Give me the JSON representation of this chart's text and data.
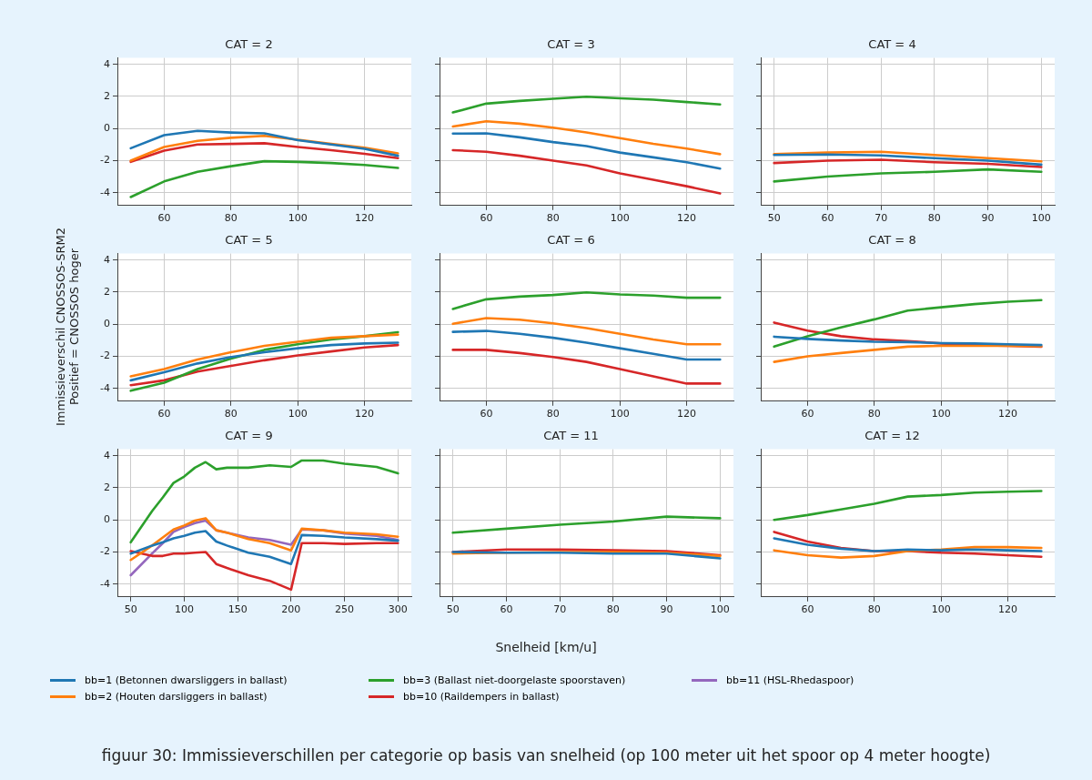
{
  "chart_data": [
    {
      "type": "line",
      "title": "CAT = 2",
      "x": [
        50,
        60,
        70,
        80,
        90,
        100,
        110,
        120,
        130
      ],
      "xlim": [
        46,
        134
      ],
      "xticks": [
        60,
        80,
        100,
        120
      ],
      "ylim": [
        -4.8,
        4.4
      ],
      "yticks": [
        -4,
        -2,
        0,
        2,
        4
      ],
      "grid": true,
      "marker": "none",
      "line_style": "solid",
      "series": [
        {
          "color": "#1f77b4",
          "values": [
            -1.23,
            -0.42,
            -0.15,
            -0.25,
            -0.3,
            -0.73,
            -1.0,
            -1.27,
            -1.7
          ]
        },
        {
          "color": "#ff7f0e",
          "values": [
            -2.0,
            -1.15,
            -0.77,
            -0.58,
            -0.46,
            -0.7,
            -0.96,
            -1.2,
            -1.55
          ]
        },
        {
          "color": "#2ca02c",
          "values": [
            -4.27,
            -3.3,
            -2.7,
            -2.35,
            -2.04,
            -2.08,
            -2.15,
            -2.27,
            -2.46
          ]
        },
        {
          "color": "#d62728",
          "values": [
            -2.08,
            -1.38,
            -1.0,
            -0.96,
            -0.92,
            -1.15,
            -1.35,
            -1.58,
            -1.85
          ]
        }
      ]
    },
    {
      "type": "line",
      "title": "CAT = 3",
      "x": [
        50,
        60,
        70,
        80,
        90,
        100,
        110,
        120,
        130
      ],
      "xlim": [
        46,
        134
      ],
      "xticks": [
        60,
        80,
        100,
        120
      ],
      "ylim": [
        -4.8,
        4.4
      ],
      "yticks": [
        -4,
        -2,
        0,
        2,
        4
      ],
      "tick_labels": "x",
      "grid": true,
      "marker": "none",
      "line_style": "solid",
      "series": [
        {
          "color": "#1f77b4",
          "values": [
            -0.32,
            -0.3,
            -0.55,
            -0.85,
            -1.1,
            -1.5,
            -1.8,
            -2.1,
            -2.5
          ]
        },
        {
          "color": "#ff7f0e",
          "values": [
            0.12,
            0.45,
            0.3,
            0.05,
            -0.25,
            -0.6,
            -0.95,
            -1.25,
            -1.6
          ]
        },
        {
          "color": "#2ca02c",
          "values": [
            1.0,
            1.55,
            1.72,
            1.85,
            1.98,
            1.88,
            1.8,
            1.65,
            1.5
          ]
        },
        {
          "color": "#d62728",
          "values": [
            -1.35,
            -1.45,
            -1.7,
            -2.0,
            -2.3,
            -2.8,
            -3.2,
            -3.6,
            -4.05
          ]
        }
      ]
    },
    {
      "type": "line",
      "title": "CAT = 4",
      "x": [
        50,
        60,
        70,
        80,
        90,
        100
      ],
      "xlim": [
        47.5,
        102.5
      ],
      "xticks": [
        50,
        60,
        70,
        80,
        90,
        100
      ],
      "ylim": [
        -4.8,
        4.4
      ],
      "yticks": [
        -4,
        -2,
        0,
        2,
        4
      ],
      "tick_labels": "x",
      "grid": true,
      "marker": "none",
      "line_style": "solid",
      "series": [
        {
          "color": "#1f77b4",
          "values": [
            -1.65,
            -1.62,
            -1.68,
            -1.85,
            -2.0,
            -2.25
          ]
        },
        {
          "color": "#ff7f0e",
          "values": [
            -1.6,
            -1.5,
            -1.45,
            -1.65,
            -1.85,
            -2.05
          ]
        },
        {
          "color": "#2ca02c",
          "values": [
            -3.3,
            -3.0,
            -2.8,
            -2.7,
            -2.55,
            -2.7
          ]
        },
        {
          "color": "#d62728",
          "values": [
            -2.15,
            -2.0,
            -1.95,
            -2.1,
            -2.2,
            -2.4
          ]
        }
      ]
    },
    {
      "type": "line",
      "title": "CAT = 5",
      "ylabel": "Immissieverschil CNOSSOS-SRM2\nPositief = CNOSSOS hoger",
      "x": [
        50,
        60,
        70,
        80,
        90,
        100,
        110,
        120,
        130
      ],
      "xlim": [
        46,
        134
      ],
      "xticks": [
        60,
        80,
        100,
        120
      ],
      "ylim": [
        -4.8,
        4.4
      ],
      "yticks": [
        -4,
        -2,
        0,
        2,
        4
      ],
      "grid": true,
      "marker": "none",
      "line_style": "solid",
      "series": [
        {
          "color": "#1f77b4",
          "values": [
            -3.5,
            -3.0,
            -2.45,
            -2.05,
            -1.75,
            -1.5,
            -1.3,
            -1.2,
            -1.15
          ]
        },
        {
          "color": "#ff7f0e",
          "values": [
            -3.25,
            -2.8,
            -2.2,
            -1.75,
            -1.35,
            -1.1,
            -0.85,
            -0.75,
            -0.65
          ]
        },
        {
          "color": "#2ca02c",
          "values": [
            -4.15,
            -3.65,
            -2.8,
            -2.15,
            -1.6,
            -1.25,
            -0.95,
            -0.75,
            -0.5
          ]
        },
        {
          "color": "#d62728",
          "values": [
            -3.8,
            -3.5,
            -2.95,
            -2.6,
            -2.25,
            -1.95,
            -1.7,
            -1.45,
            -1.3
          ]
        }
      ]
    },
    {
      "type": "line",
      "title": "CAT = 6",
      "x": [
        50,
        60,
        70,
        80,
        90,
        100,
        110,
        120,
        130
      ],
      "xlim": [
        46,
        134
      ],
      "xticks": [
        60,
        80,
        100,
        120
      ],
      "ylim": [
        -4.8,
        4.4
      ],
      "yticks": [
        -4,
        -2,
        0,
        2,
        4
      ],
      "tick_labels": "x",
      "grid": true,
      "marker": "none",
      "line_style": "solid",
      "series": [
        {
          "color": "#1f77b4",
          "values": [
            -0.48,
            -0.42,
            -0.6,
            -0.85,
            -1.15,
            -1.5,
            -1.85,
            -2.2,
            -2.2
          ]
        },
        {
          "color": "#ff7f0e",
          "values": [
            0.02,
            0.38,
            0.28,
            0.05,
            -0.25,
            -0.6,
            -0.95,
            -1.25,
            -1.25
          ]
        },
        {
          "color": "#2ca02c",
          "values": [
            0.95,
            1.55,
            1.72,
            1.82,
            1.98,
            1.85,
            1.78,
            1.65,
            1.65
          ]
        },
        {
          "color": "#d62728",
          "values": [
            -1.6,
            -1.6,
            -1.8,
            -2.05,
            -2.35,
            -2.8,
            -3.25,
            -3.7,
            -3.7
          ]
        }
      ]
    },
    {
      "type": "line",
      "title": "CAT = 8",
      "x": [
        50,
        60,
        70,
        80,
        90,
        100,
        110,
        120,
        130
      ],
      "xlim": [
        46,
        134
      ],
      "xticks": [
        60,
        80,
        100,
        120
      ],
      "ylim": [
        -4.8,
        4.4
      ],
      "yticks": [
        -4,
        -2,
        0,
        2,
        4
      ],
      "tick_labels": "x",
      "grid": true,
      "marker": "none",
      "line_style": "solid",
      "series": [
        {
          "color": "#1f77b4",
          "values": [
            -0.78,
            -0.92,
            -1.02,
            -1.1,
            -1.12,
            -1.18,
            -1.2,
            -1.25,
            -1.3
          ]
        },
        {
          "color": "#ff7f0e",
          "values": [
            -2.35,
            -2.0,
            -1.8,
            -1.6,
            -1.4,
            -1.35,
            -1.35,
            -1.35,
            -1.38
          ]
        },
        {
          "color": "#2ca02c",
          "values": [
            -1.4,
            -0.75,
            -0.2,
            0.3,
            0.85,
            1.05,
            1.25,
            1.4,
            1.5
          ]
        },
        {
          "color": "#d62728",
          "values": [
            0.1,
            -0.4,
            -0.75,
            -0.95,
            -1.05,
            -1.2,
            -1.3,
            -1.35,
            -1.4
          ]
        }
      ]
    },
    {
      "type": "line",
      "title": "CAT = 9",
      "legend": "bottom",
      "x": [
        50,
        70,
        80,
        90,
        100,
        110,
        120,
        130,
        140,
        160,
        180,
        200,
        210,
        230,
        250,
        280,
        300
      ],
      "xlim": [
        37.5,
        312.5
      ],
      "xticks": [
        50,
        100,
        150,
        200,
        250,
        300
      ],
      "ylim": [
        -4.8,
        4.4
      ],
      "yticks": [
        -4,
        -2,
        0,
        2,
        4
      ],
      "grid": true,
      "marker": "none",
      "line_style": "solid",
      "series": [
        {
          "name": "bb=1 (Betonnen dwarsliggers in ballast)",
          "color": "#1f77b4",
          "values": [
            -2.1,
            -1.6,
            -1.4,
            -1.15,
            -1.0,
            -0.8,
            -0.7,
            -1.35,
            -1.6,
            -2.05,
            -2.3,
            -2.75,
            -0.95,
            -1.0,
            -1.1,
            -1.2,
            -1.3
          ]
        },
        {
          "name": "bb=2 (Houten darsliggers in ballast)",
          "color": "#ff7f0e",
          "values": [
            -2.5,
            -1.6,
            -1.1,
            -0.6,
            -0.35,
            -0.05,
            0.1,
            -0.65,
            -0.8,
            -1.2,
            -1.45,
            -1.9,
            -0.55,
            -0.65,
            -0.8,
            -0.9,
            -1.05
          ]
        },
        {
          "name": "bb=3 (Ballast niet-doorgelaste spoorstaven)",
          "color": "#2ca02c",
          "values": [
            -1.4,
            0.55,
            1.4,
            2.3,
            2.7,
            3.25,
            3.6,
            3.15,
            3.25,
            3.25,
            3.4,
            3.3,
            3.7,
            3.7,
            3.5,
            3.3,
            2.9
          ]
        },
        {
          "name": "bb=10 (Raildempers in ballast)",
          "color": "#d62728",
          "values": [
            -1.95,
            -2.25,
            -2.25,
            -2.1,
            -2.1,
            -2.05,
            -2.0,
            -2.75,
            -3.0,
            -3.45,
            -3.8,
            -4.35,
            -1.45,
            -1.45,
            -1.5,
            -1.45,
            -1.45
          ]
        },
        {
          "name": "bb=11 (HSL-Rhedaspoor)",
          "color": "#9467bd",
          "values": [
            -3.45,
            -2.1,
            -1.45,
            -0.75,
            -0.45,
            -0.2,
            -0.05,
            -0.65,
            -0.8,
            -1.1,
            -1.25,
            -1.55,
            -0.6,
            -0.65,
            -0.85,
            -1.0,
            -1.25
          ]
        }
      ]
    },
    {
      "type": "line",
      "title": "CAT = 11",
      "xlabel": "Snelheid [km/u]",
      "annotations": [
        "figuur 30: Immissieverschillen per categorie op basis van snelheid (op 100 meter uit het spoor op 4 meter hoogte)"
      ],
      "x": [
        50,
        60,
        70,
        80,
        90,
        100
      ],
      "xlim": [
        47.5,
        102.5
      ],
      "xticks": [
        50,
        60,
        70,
        80,
        90,
        100
      ],
      "ylim": [
        -4.8,
        4.4
      ],
      "yticks": [
        -4,
        -2,
        0,
        2,
        4
      ],
      "tick_labels": "x",
      "grid": true,
      "marker": "none",
      "line_style": "solid",
      "series": [
        {
          "color": "#1f77b4",
          "values": [
            -2.0,
            -2.05,
            -2.05,
            -2.1,
            -2.1,
            -2.4
          ]
        },
        {
          "color": "#ff7f0e",
          "values": [
            -2.1,
            -2.05,
            -2.0,
            -2.0,
            -2.05,
            -2.25
          ]
        },
        {
          "color": "#2ca02c",
          "values": [
            -0.8,
            -0.55,
            -0.3,
            -0.1,
            0.2,
            0.1
          ]
        },
        {
          "color": "#d62728",
          "values": [
            -2.0,
            -1.85,
            -1.85,
            -1.9,
            -1.95,
            -2.2
          ]
        }
      ]
    },
    {
      "type": "line",
      "title": "CAT = 12",
      "x": [
        50,
        60,
        70,
        80,
        90,
        100,
        110,
        120,
        130
      ],
      "xlim": [
        46,
        134
      ],
      "xticks": [
        60,
        80,
        100,
        120
      ],
      "ylim": [
        -4.8,
        4.4
      ],
      "yticks": [
        -4,
        -2,
        0,
        2,
        4
      ],
      "tick_labels": "x",
      "grid": true,
      "marker": "none",
      "line_style": "solid",
      "series": [
        {
          "color": "#1f77b4",
          "values": [
            -1.15,
            -1.55,
            -1.8,
            -1.95,
            -1.85,
            -1.9,
            -1.85,
            -1.9,
            -1.95
          ]
        },
        {
          "color": "#ff7f0e",
          "values": [
            -1.9,
            -2.2,
            -2.35,
            -2.25,
            -1.95,
            -1.85,
            -1.7,
            -1.7,
            -1.75
          ]
        },
        {
          "color": "#2ca02c",
          "values": [
            0.0,
            0.3,
            0.65,
            1.0,
            1.45,
            1.55,
            1.7,
            1.75,
            1.8
          ]
        },
        {
          "color": "#d62728",
          "values": [
            -0.75,
            -1.35,
            -1.75,
            -1.95,
            -1.95,
            -2.05,
            -2.1,
            -2.2,
            -2.3
          ]
        }
      ]
    }
  ]
}
